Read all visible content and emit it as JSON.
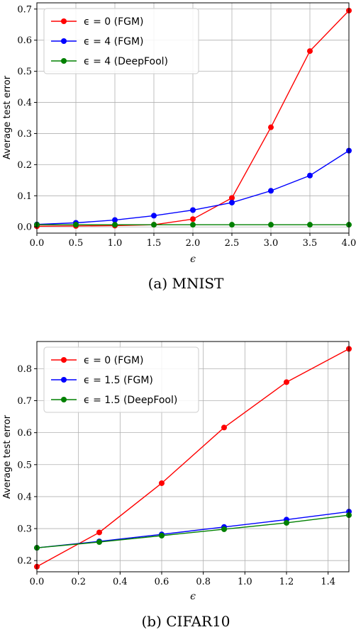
{
  "chart_data": [
    {
      "type": "line",
      "caption": "(a) MNIST",
      "xlabel": "ϵ",
      "ylabel": "Average test error",
      "xlim": [
        0,
        4
      ],
      "ylim": [
        -0.02,
        0.72
      ],
      "grid": true,
      "legend_position": "top-left",
      "x_ticks": [
        0.0,
        0.5,
        1.0,
        1.5,
        2.0,
        2.5,
        3.0,
        3.5,
        4.0
      ],
      "y_ticks": [
        0.0,
        0.1,
        0.2,
        0.3,
        0.4,
        0.5,
        0.6,
        0.7
      ],
      "x": [
        0.0,
        0.5,
        1.0,
        1.5,
        2.0,
        2.5,
        3.0,
        3.5,
        4.0
      ],
      "series": [
        {
          "name": "ϵ = 0 (FGM)",
          "color": "#ff0000",
          "values": [
            0.002,
            0.003,
            0.004,
            0.007,
            0.025,
            0.093,
            0.32,
            0.565,
            0.695
          ]
        },
        {
          "name": "ϵ = 4 (FGM)",
          "color": "#0000ff",
          "values": [
            0.008,
            0.013,
            0.022,
            0.036,
            0.054,
            0.078,
            0.116,
            0.165,
            0.245
          ]
        },
        {
          "name": "ϵ = 4 (DeepFool)",
          "color": "#008000",
          "values": [
            0.007,
            0.007,
            0.007,
            0.007,
            0.007,
            0.007,
            0.007,
            0.007,
            0.007
          ]
        }
      ]
    },
    {
      "type": "line",
      "caption": "(b) CIFAR10",
      "xlabel": "ϵ",
      "ylabel": "Average test error",
      "xlim": [
        0,
        1.5
      ],
      "ylim": [
        0.165,
        0.885
      ],
      "grid": true,
      "legend_position": "top-left",
      "x_ticks": [
        0.0,
        0.2,
        0.4,
        0.6,
        0.8,
        1.0,
        1.2,
        1.4
      ],
      "y_ticks": [
        0.2,
        0.3,
        0.4,
        0.5,
        0.6,
        0.7,
        0.8
      ],
      "x": [
        0.0,
        0.3,
        0.6,
        0.9,
        1.2,
        1.5
      ],
      "series": [
        {
          "name": "ϵ = 0 (FGM)",
          "color": "#ff0000",
          "values": [
            0.181,
            0.288,
            0.442,
            0.616,
            0.758,
            0.862
          ]
        },
        {
          "name": "ϵ = 1.5 (FGM)",
          "color": "#0000ff",
          "values": [
            0.24,
            0.26,
            0.282,
            0.305,
            0.328,
            0.353
          ]
        },
        {
          "name": "ϵ = 1.5 (DeepFool)",
          "color": "#008000",
          "values": [
            0.24,
            0.258,
            0.278,
            0.298,
            0.318,
            0.342
          ]
        }
      ]
    }
  ]
}
